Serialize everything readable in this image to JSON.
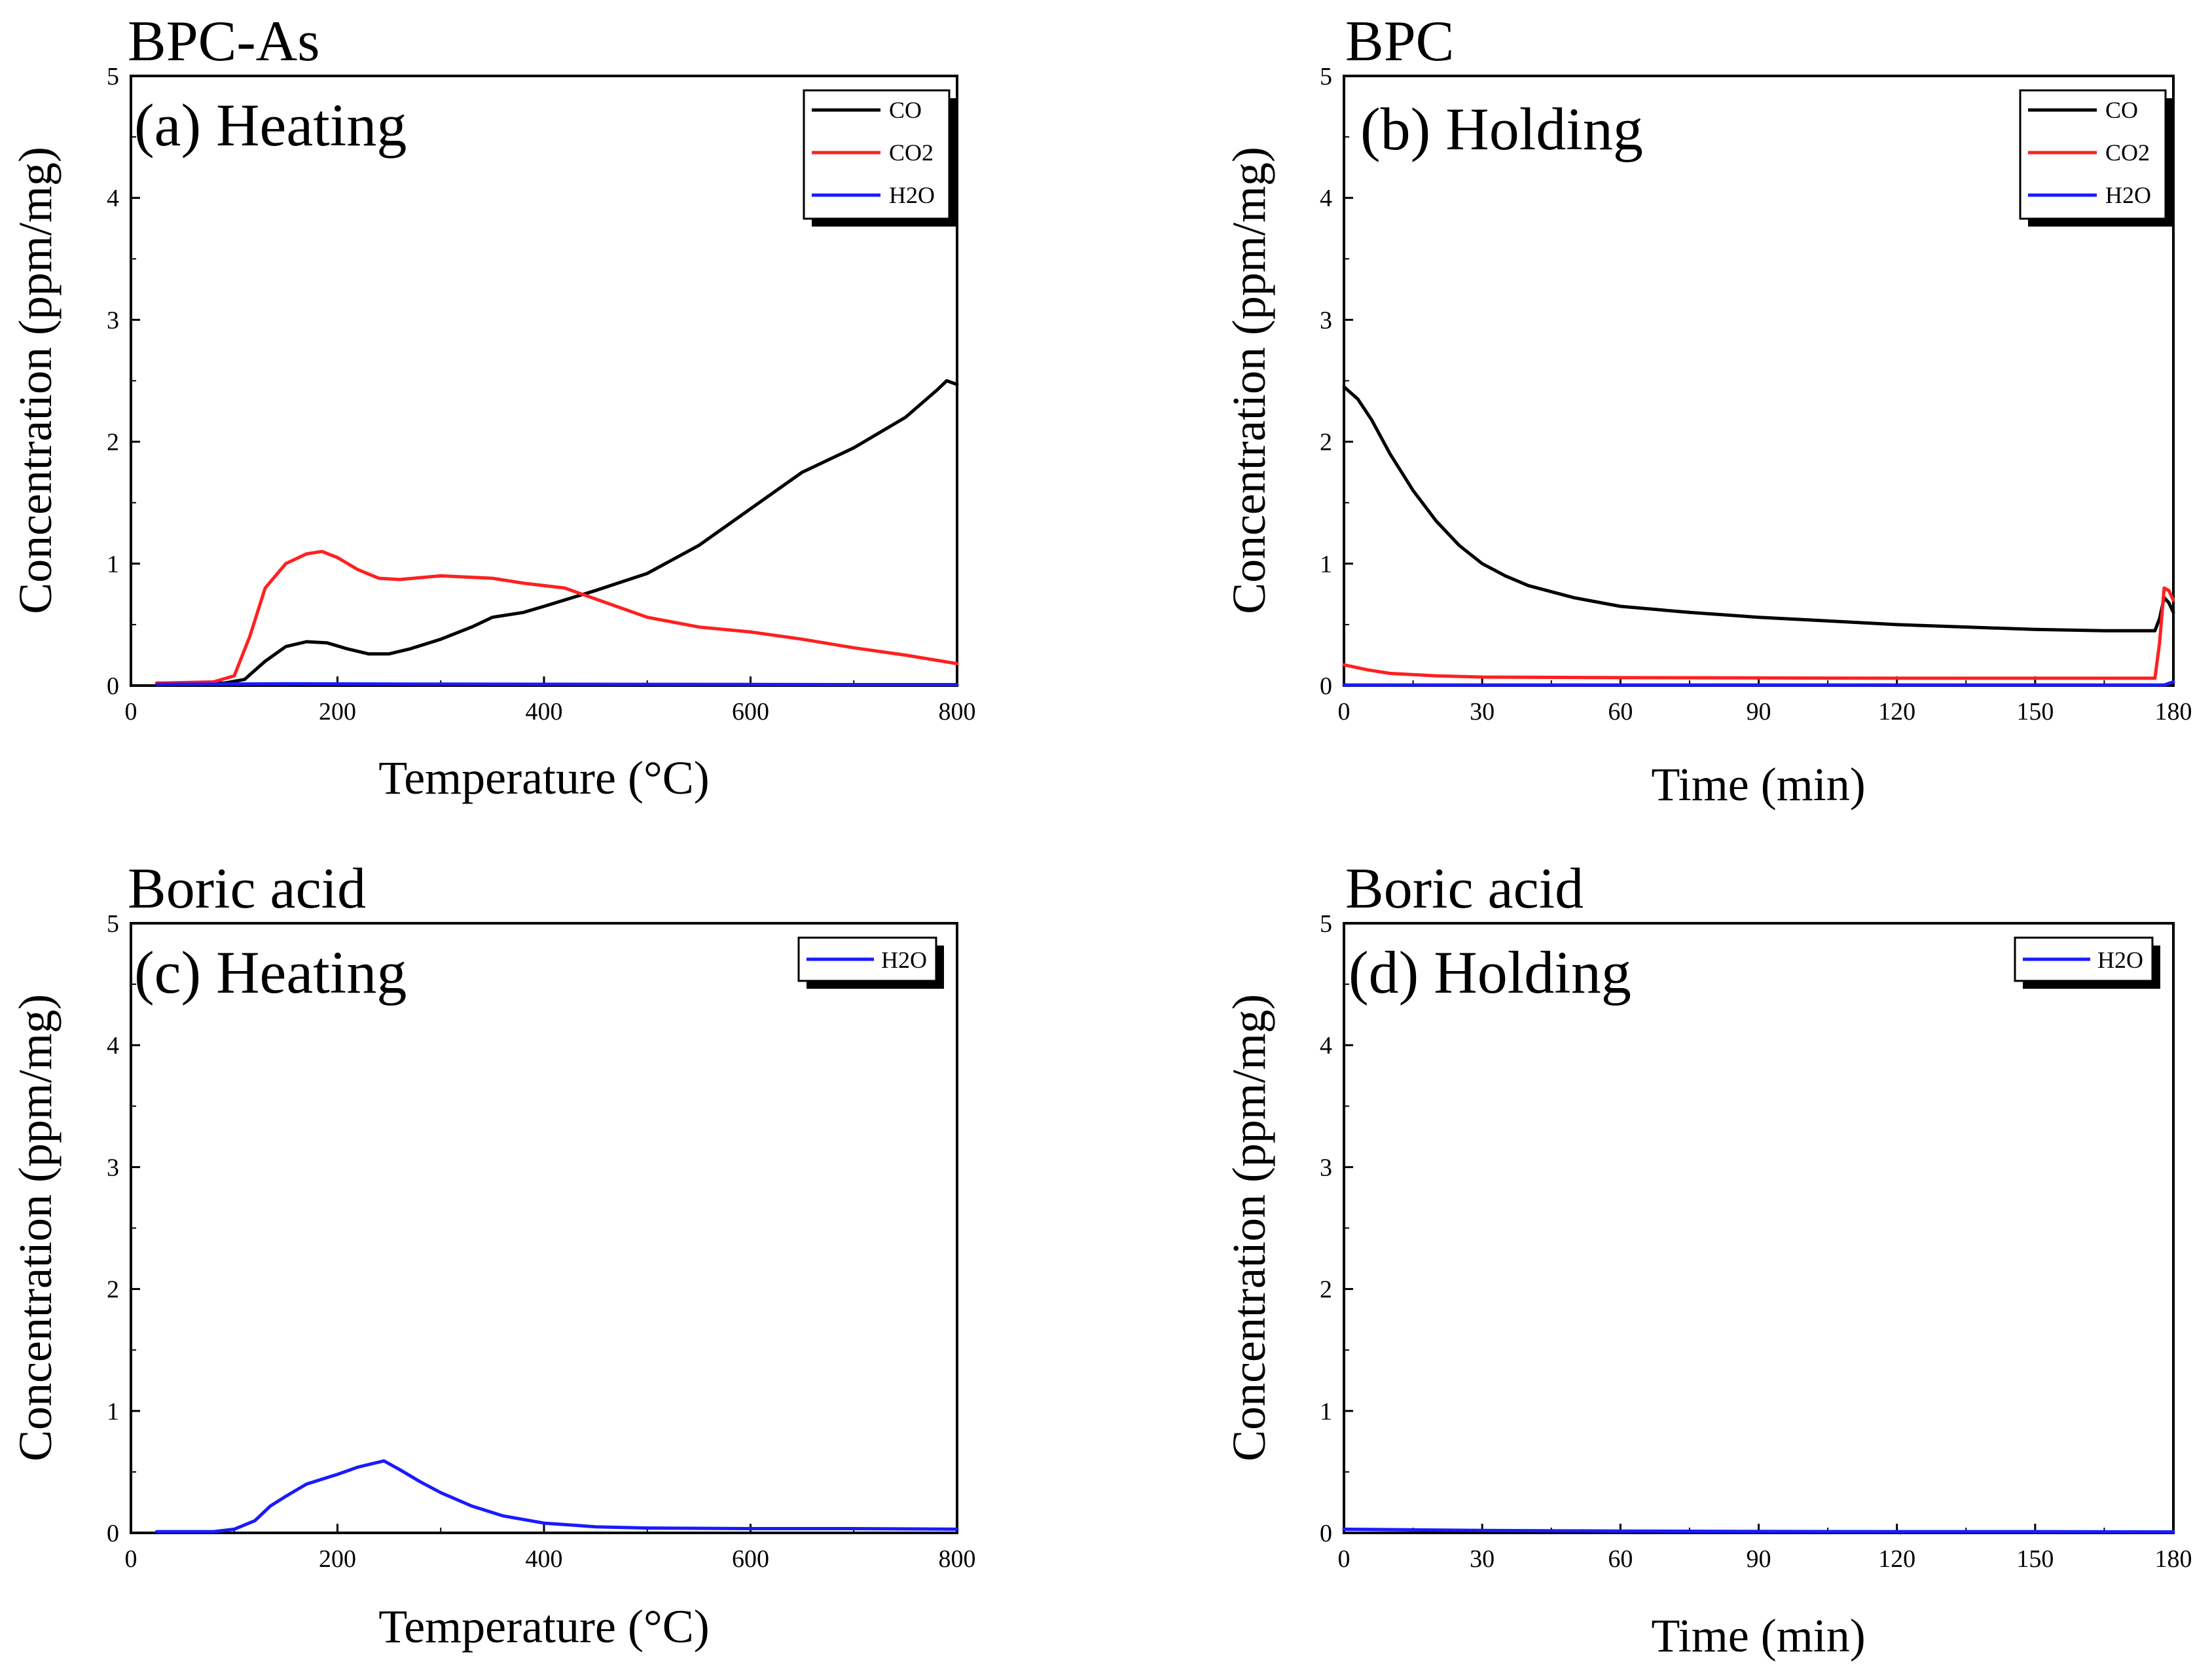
{
  "figure_colors": {
    "CO": "#000000",
    "CO2": "#ff2020",
    "H2O": "#1a1aff"
  },
  "chart_data": [
    {
      "id": "a",
      "type": "line",
      "title": "BPC-As",
      "subtitle": "(a) Heating",
      "xlabel": "Temperature (°C)",
      "ylabel": "Concentration (ppm/mg)",
      "xlim": [
        0,
        800
      ],
      "ylim": [
        0,
        5
      ],
      "xticks": [
        0,
        200,
        400,
        600,
        800
      ],
      "yticks": [
        0,
        1,
        2,
        3,
        4,
        5
      ],
      "legend": [
        "CO",
        "CO2",
        "H2O"
      ],
      "legend_position": "top-right",
      "series": [
        {
          "name": "CO",
          "key": "CO",
          "x": [
            25,
            90,
            110,
            130,
            150,
            170,
            190,
            210,
            230,
            250,
            270,
            300,
            330,
            350,
            380,
            400,
            450,
            500,
            550,
            600,
            650,
            700,
            750,
            780,
            790,
            800
          ],
          "y": [
            0.02,
            0.02,
            0.05,
            0.2,
            0.32,
            0.36,
            0.35,
            0.3,
            0.26,
            0.26,
            0.3,
            0.38,
            0.48,
            0.56,
            0.6,
            0.65,
            0.78,
            0.92,
            1.15,
            1.45,
            1.75,
            1.95,
            2.2,
            2.42,
            2.5,
            2.47
          ]
        },
        {
          "name": "CO2",
          "key": "CO2",
          "x": [
            25,
            80,
            100,
            115,
            130,
            150,
            170,
            185,
            200,
            220,
            240,
            260,
            300,
            350,
            380,
            420,
            460,
            500,
            550,
            600,
            650,
            700,
            750,
            800
          ],
          "y": [
            0.02,
            0.03,
            0.08,
            0.4,
            0.8,
            1.0,
            1.08,
            1.1,
            1.05,
            0.95,
            0.88,
            0.87,
            0.9,
            0.88,
            0.84,
            0.8,
            0.68,
            0.56,
            0.48,
            0.44,
            0.38,
            0.31,
            0.25,
            0.18
          ]
        },
        {
          "name": "H2O",
          "key": "H2O",
          "x": [
            25,
            150,
            300,
            500,
            700,
            800
          ],
          "y": [
            0.01,
            0.015,
            0.012,
            0.01,
            0.008,
            0.008
          ]
        }
      ]
    },
    {
      "id": "b",
      "type": "line",
      "title": "BPC",
      "subtitle": "(b) Holding",
      "xlabel": "Time (min)",
      "ylabel": "Concentration (ppm/mg)",
      "xlim": [
        0,
        180
      ],
      "ylim": [
        0,
        5
      ],
      "xticks": [
        0,
        30,
        60,
        90,
        120,
        150,
        180
      ],
      "yticks": [
        0,
        1,
        2,
        3,
        4,
        5
      ],
      "legend": [
        "CO",
        "CO2",
        "H2O"
      ],
      "legend_position": "top-right",
      "series": [
        {
          "name": "CO",
          "key": "CO",
          "x": [
            0,
            3,
            6,
            10,
            15,
            20,
            25,
            30,
            35,
            40,
            50,
            60,
            75,
            90,
            105,
            120,
            135,
            150,
            165,
            176,
            177,
            178,
            179,
            180
          ],
          "y": [
            2.45,
            2.35,
            2.18,
            1.9,
            1.6,
            1.35,
            1.15,
            1.0,
            0.9,
            0.82,
            0.72,
            0.65,
            0.6,
            0.56,
            0.53,
            0.5,
            0.48,
            0.46,
            0.45,
            0.45,
            0.55,
            0.72,
            0.68,
            0.6
          ]
        },
        {
          "name": "CO2",
          "key": "CO2",
          "x": [
            0,
            5,
            10,
            20,
            30,
            60,
            120,
            176,
            177,
            178,
            179,
            180
          ],
          "y": [
            0.17,
            0.13,
            0.1,
            0.08,
            0.07,
            0.065,
            0.06,
            0.06,
            0.35,
            0.8,
            0.78,
            0.7
          ]
        },
        {
          "name": "H2O",
          "key": "H2O",
          "x": [
            0,
            60,
            120,
            178,
            180
          ],
          "y": [
            0.005,
            0.005,
            0.005,
            0.005,
            0.03
          ]
        }
      ]
    },
    {
      "id": "c",
      "type": "line",
      "title": "Boric acid",
      "subtitle": "(c) Heating",
      "xlabel": "Temperature (°C)",
      "ylabel": "Concentration (ppm/mg)",
      "xlim": [
        0,
        800
      ],
      "ylim": [
        0,
        5
      ],
      "xticks": [
        0,
        200,
        400,
        600,
        800
      ],
      "yticks": [
        0,
        1,
        2,
        3,
        4,
        5
      ],
      "legend": [
        "H2O"
      ],
      "legend_position": "top-right",
      "series": [
        {
          "name": "H2O",
          "key": "H2O",
          "x": [
            25,
            80,
            100,
            120,
            135,
            150,
            170,
            200,
            220,
            245,
            260,
            280,
            300,
            330,
            360,
            400,
            450,
            500,
            600,
            700,
            800
          ],
          "y": [
            0.01,
            0.01,
            0.03,
            0.1,
            0.22,
            0.3,
            0.4,
            0.48,
            0.54,
            0.59,
            0.52,
            0.42,
            0.33,
            0.22,
            0.14,
            0.08,
            0.05,
            0.04,
            0.035,
            0.035,
            0.03
          ]
        }
      ]
    },
    {
      "id": "d",
      "type": "line",
      "title": "Boric acid",
      "subtitle": "(d) Holding",
      "xlabel": "Time (min)",
      "ylabel": "Concentration (ppm/mg)",
      "xlim": [
        0,
        180
      ],
      "ylim": [
        0,
        5
      ],
      "xticks": [
        0,
        30,
        60,
        90,
        120,
        150,
        180
      ],
      "yticks": [
        0,
        1,
        2,
        3,
        4,
        5
      ],
      "legend": [
        "H2O"
      ],
      "legend_position": "top-right",
      "series": [
        {
          "name": "H2O",
          "key": "H2O",
          "x": [
            0,
            30,
            60,
            90,
            120,
            150,
            180
          ],
          "y": [
            0.03,
            0.02,
            0.015,
            0.012,
            0.01,
            0.01,
            0.008
          ]
        }
      ]
    }
  ]
}
